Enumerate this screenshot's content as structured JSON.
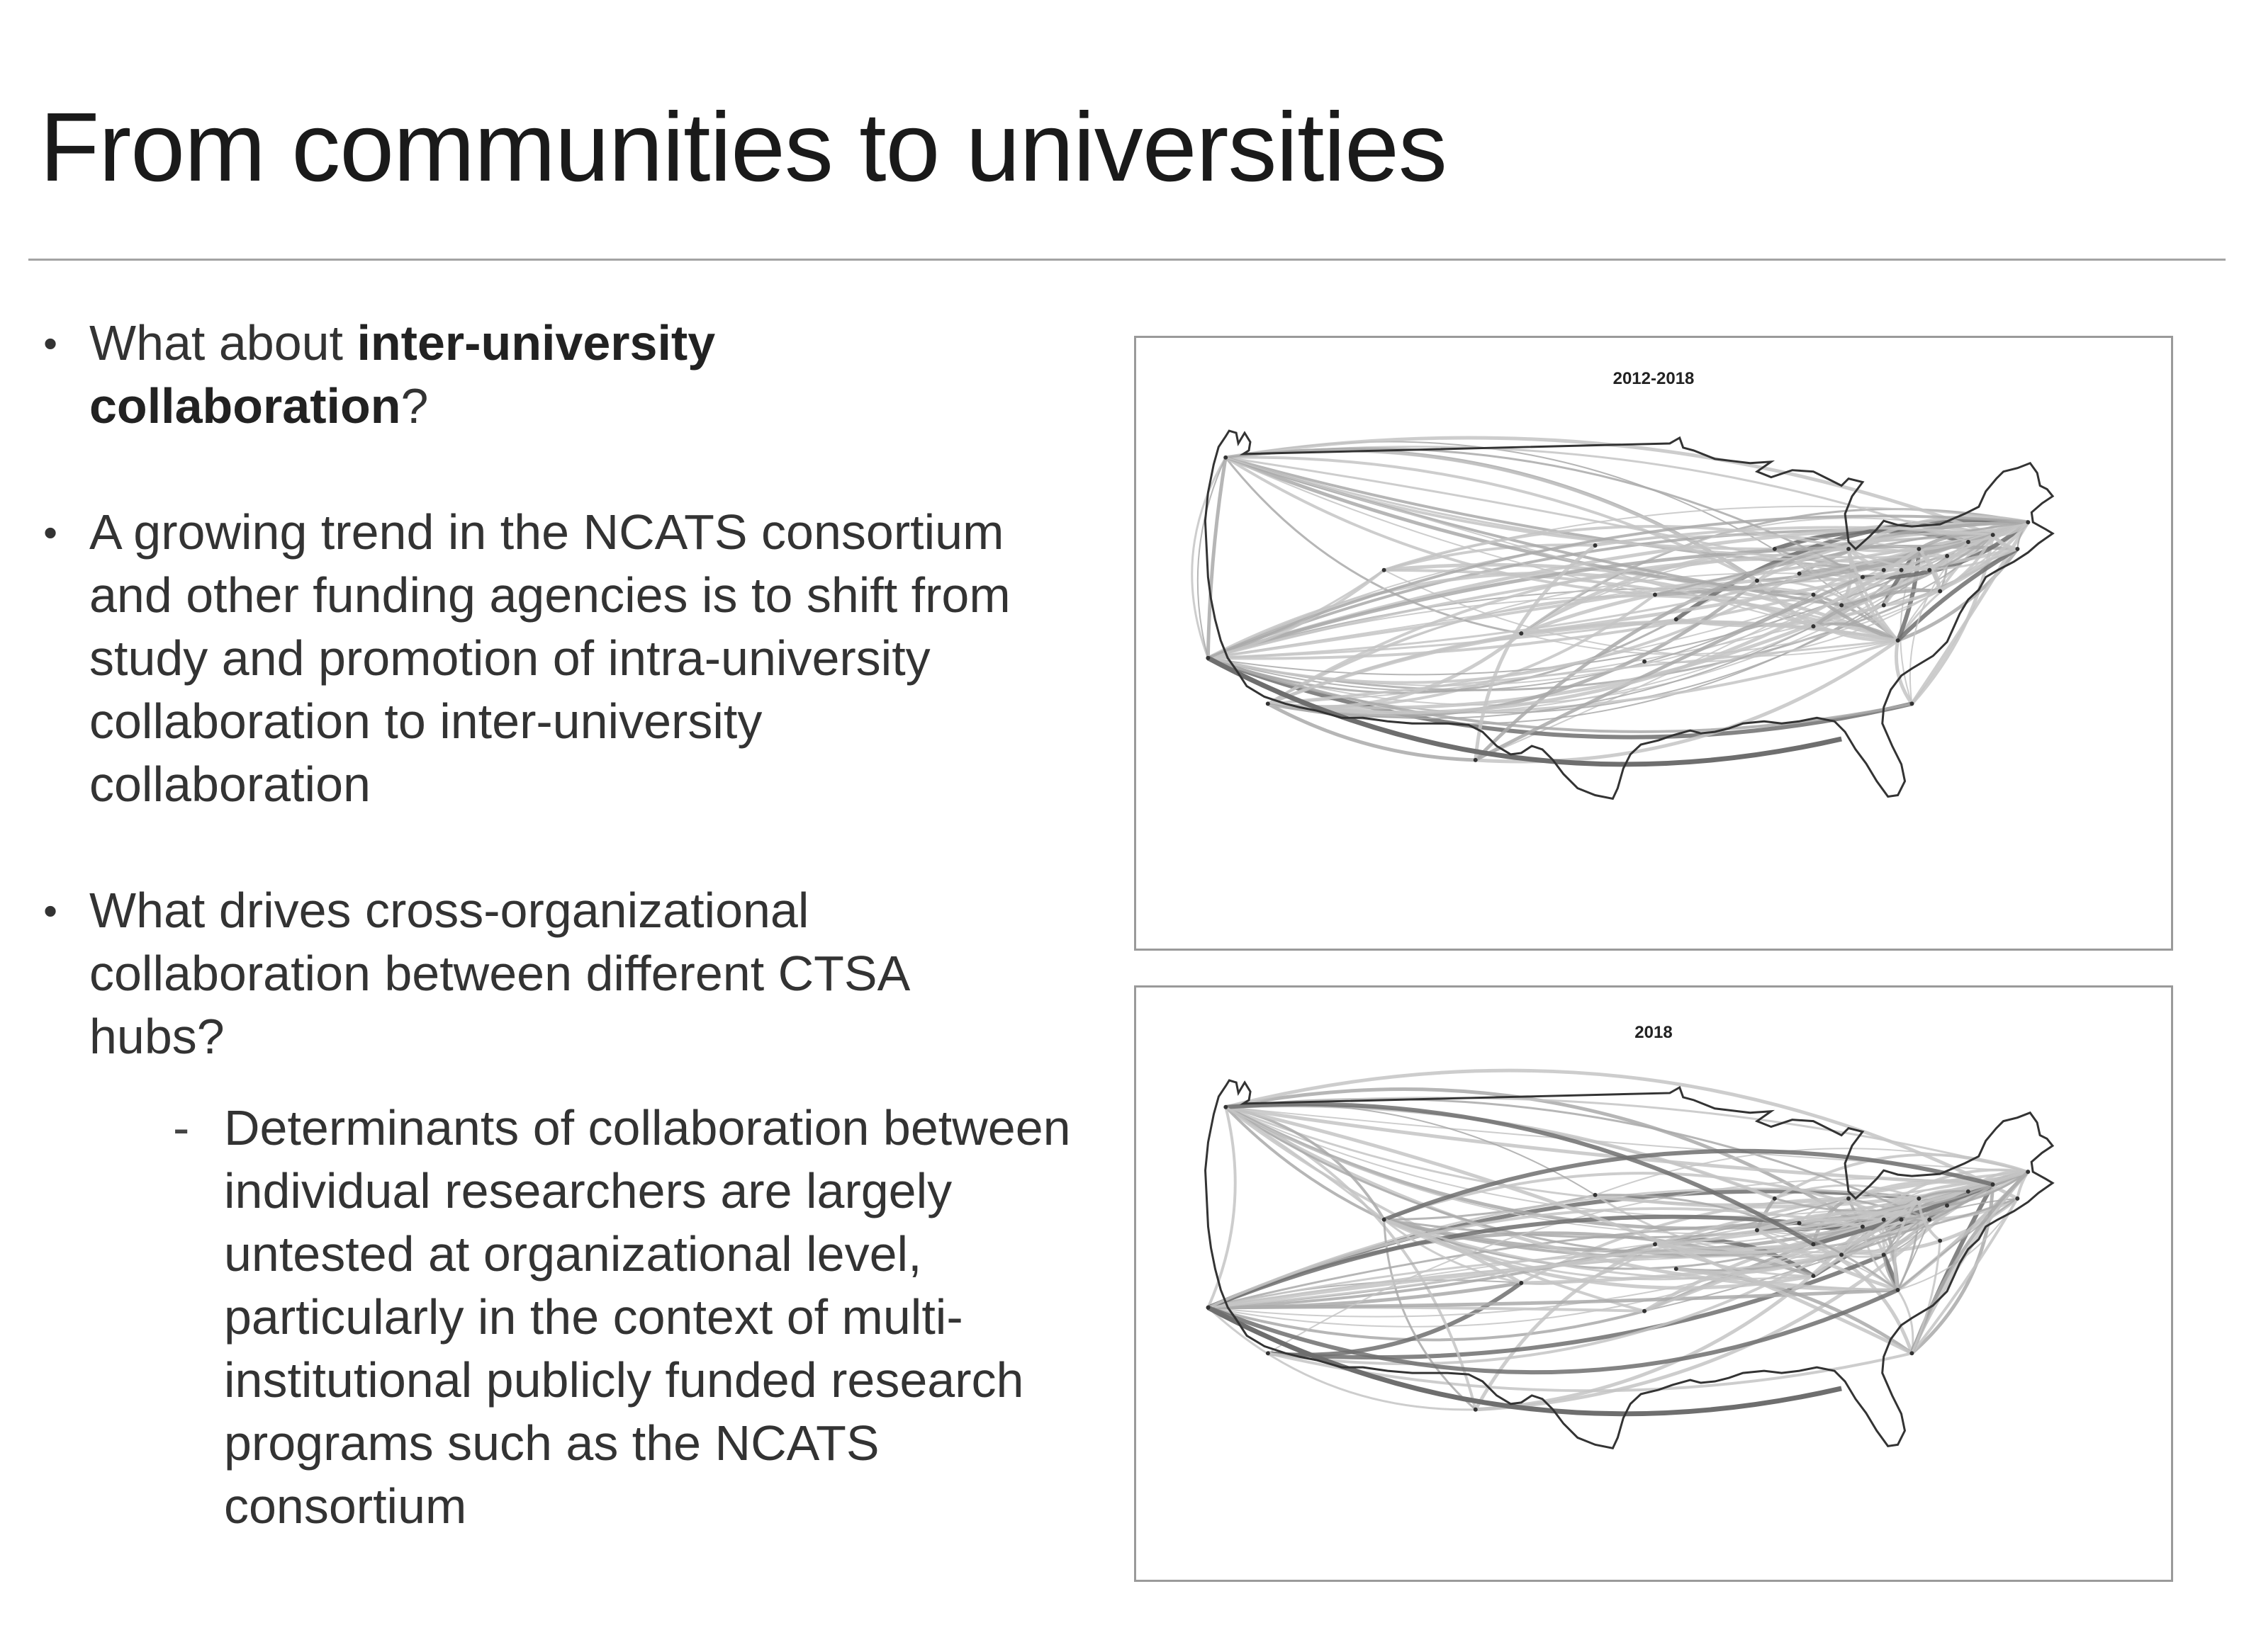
{
  "slide": {
    "title": "From communities to universities",
    "bullets": [
      {
        "lines": [
          {
            "parts": [
              {
                "text": "What about ",
                "bold": false
              },
              {
                "text": "inter-university",
                "bold": true
              }
            ]
          },
          {
            "parts": [
              {
                "text": "collaboration",
                "bold": true
              },
              {
                "text": "?",
                "bold": false
              }
            ]
          }
        ]
      },
      {
        "lines": [
          {
            "parts": [
              {
                "text": "A growing trend in the NCATS consortium",
                "bold": false
              }
            ]
          },
          {
            "parts": [
              {
                "text": "and other funding agencies is to shift from",
                "bold": false
              }
            ]
          },
          {
            "parts": [
              {
                "text": "study and promotion of intra-university",
                "bold": false
              }
            ]
          },
          {
            "parts": [
              {
                "text": "collaboration to inter-university",
                "bold": false
              }
            ]
          },
          {
            "parts": [
              {
                "text": "collaboration",
                "bold": false
              }
            ]
          }
        ]
      },
      {
        "lines": [
          {
            "parts": [
              {
                "text": "What drives cross-organizational",
                "bold": false
              }
            ]
          },
          {
            "parts": [
              {
                "text": "collaboration between different CTSA",
                "bold": false
              }
            ]
          },
          {
            "parts": [
              {
                "text": "hubs?",
                "bold": false
              }
            ]
          }
        ],
        "sub": [
          {
            "parts": [
              {
                "text": "Determinants of collaboration between",
                "bold": false
              }
            ]
          },
          {
            "parts": [
              {
                "text": "individual researchers are largely",
                "bold": false
              }
            ]
          },
          {
            "parts": [
              {
                "text": "untested at organizational level,",
                "bold": false
              }
            ]
          },
          {
            "parts": [
              {
                "text": "particularly in the context of multi-",
                "bold": false
              }
            ]
          },
          {
            "parts": [
              {
                "text": "institutional publicly funded research",
                "bold": false
              }
            ]
          },
          {
            "parts": [
              {
                "text": "programs such as the NCATS",
                "bold": false
              }
            ]
          },
          {
            "parts": [
              {
                "text": "consortium",
                "bold": false
              }
            ]
          }
        ]
      }
    ],
    "bullet_glyph": "•",
    "sub_glyph": "-"
  },
  "maps": [
    {
      "title": "2012-2018"
    },
    {
      "title": "2018"
    }
  ],
  "colors": {
    "edge_light": "#c4c4c4",
    "edge_mid": "#a9a9a9",
    "edge_dark": "#6e6e6e",
    "outline": "#333333"
  }
}
